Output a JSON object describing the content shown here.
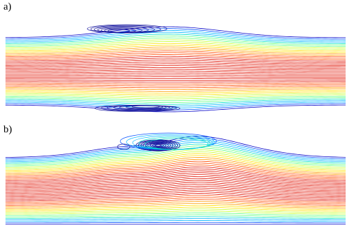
{
  "panels": [
    {
      "label": "a)",
      "wall_profile": "symmetric-bulge",
      "recirculation_zones": [
        "upper-wall",
        "lower-wall"
      ]
    },
    {
      "label": "b)",
      "wall_profile": "upper-bulge",
      "recirculation_zones": [
        "upper-wall"
      ]
    }
  ],
  "colormap": [
    "#0000c8",
    "#0050ff",
    "#00b4ff",
    "#00e0c8",
    "#60ff80",
    "#c8ff30",
    "#ffe000",
    "#ff9a00",
    "#ff4a00",
    "#e01000"
  ],
  "style": {
    "background": "#ffffff",
    "vortex_color": "#1a1aa0"
  }
}
